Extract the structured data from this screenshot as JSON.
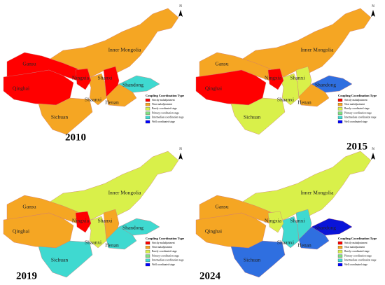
{
  "north": "N",
  "legend": {
    "title": "Coupling Coordination Type",
    "items": [
      "Strictly maladjustment",
      "Near maladjustment",
      "Barely coordinated stage",
      "Primary coordination stage",
      "Intermediate coordination stage",
      "Well coordinated stage"
    ]
  },
  "panels": [
    {
      "year": "2010",
      "labels": [
        "Gansu",
        "Qinghai",
        "Ningxia",
        "Shanxi",
        "Inner Mongolia",
        "Shaanxi",
        "Henan",
        "Shandong",
        "Sichuan"
      ]
    },
    {
      "year": "2015",
      "labels": [
        "Gansu",
        "Qinghai",
        "Ningxia",
        "Shanxi",
        "Inner Mongolia",
        "Shaanxi",
        "Henan",
        "Shandong",
        "Sichuan"
      ]
    },
    {
      "year": "2019",
      "labels": [
        "Gansu",
        "Qinghai",
        "Ningxia",
        "Shanxi",
        "Inner Mongolia",
        "Shaanxi",
        "Henan",
        "Shandong",
        "Sichuan"
      ]
    },
    {
      "year": "2024",
      "labels": [
        "Gansu",
        "Qinghai",
        "Ningxia",
        "Shanxi",
        "Inner Mongolia",
        "Shaanxi",
        "Henan",
        "Shandong",
        "Sichuan"
      ]
    }
  ]
}
